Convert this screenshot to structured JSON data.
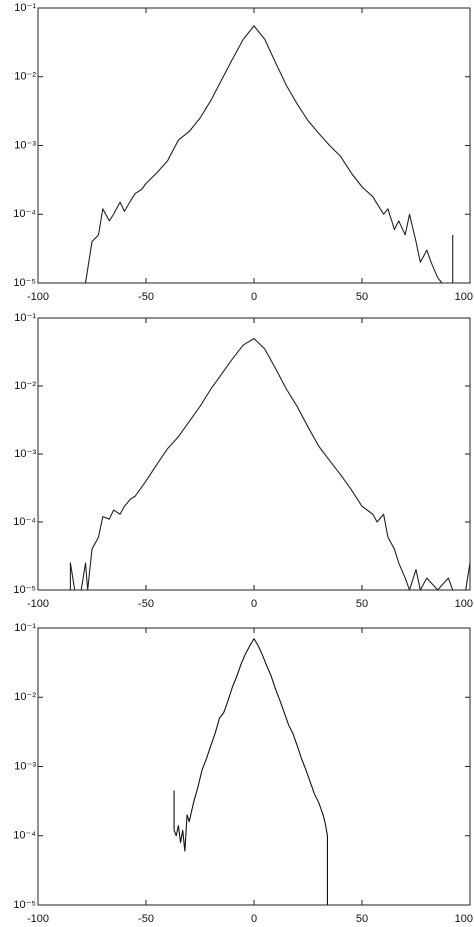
{
  "chart_data": [
    {
      "type": "line",
      "log_y": true,
      "color": "#222222",
      "xlim": [
        -100,
        100
      ],
      "xticks": [
        -100,
        -50,
        0,
        50,
        100
      ],
      "ylim": [
        1e-05,
        0.1
      ],
      "yticks": [
        {
          "value": 1e-05,
          "label": "10⁻⁵"
        },
        {
          "value": 0.0001,
          "label": "10⁻⁴"
        },
        {
          "value": 0.001,
          "label": "10⁻³"
        },
        {
          "value": 0.01,
          "label": "10⁻²"
        },
        {
          "value": 0.1,
          "label": "10⁻¹"
        }
      ],
      "x": [
        -78,
        -75,
        -72,
        -70,
        -67,
        -65,
        -62,
        -60,
        -57,
        -55,
        -52,
        -50,
        -45,
        -40,
        -35,
        -30,
        -25,
        -20,
        -15,
        -10,
        -5,
        0,
        5,
        10,
        15,
        20,
        25,
        30,
        35,
        40,
        45,
        50,
        55,
        60,
        62,
        65,
        67,
        70,
        72,
        75,
        77,
        80,
        82,
        85,
        87,
        92,
        92
      ],
      "values": [
        1e-05,
        4e-05,
        5e-05,
        0.00012,
        8e-05,
        0.0001,
        0.00015,
        0.00011,
        0.00016,
        0.0002,
        0.00023,
        0.00028,
        0.0004,
        0.0006,
        0.0012,
        0.0016,
        0.0025,
        0.0045,
        0.009,
        0.018,
        0.035,
        0.055,
        0.035,
        0.016,
        0.0075,
        0.004,
        0.0023,
        0.0015,
        0.001,
        0.0007,
        0.0004,
        0.00025,
        0.00018,
        0.0001,
        0.00012,
        6e-05,
        8e-05,
        5e-05,
        0.0001,
        4e-05,
        2e-05,
        3e-05,
        2e-05,
        1.2e-05,
        1e-05,
        1e-05,
        5e-05
      ]
    },
    {
      "type": "line",
      "log_y": true,
      "color": "#222222",
      "xlim": [
        -100,
        100
      ],
      "xticks": [
        -100,
        -50,
        0,
        50,
        100
      ],
      "ylim": [
        1e-05,
        0.1
      ],
      "yticks": [
        {
          "value": 1e-05,
          "label": "10⁻⁵"
        },
        {
          "value": 0.0001,
          "label": "10⁻⁴"
        },
        {
          "value": 0.001,
          "label": "10⁻³"
        },
        {
          "value": 0.01,
          "label": "10⁻²"
        },
        {
          "value": 0.1,
          "label": "10⁻¹"
        }
      ],
      "x": [
        -85,
        -85,
        -83,
        -82,
        -80,
        -78,
        -77,
        -75,
        -72,
        -70,
        -67,
        -65,
        -62,
        -60,
        -57,
        -55,
        -50,
        -45,
        -40,
        -35,
        -30,
        -25,
        -20,
        -15,
        -10,
        -5,
        0,
        5,
        10,
        15,
        20,
        25,
        30,
        35,
        40,
        45,
        50,
        55,
        57,
        60,
        62,
        65,
        67,
        70,
        72,
        75,
        77,
        80,
        85,
        90,
        92,
        95,
        98,
        100
      ],
      "values": [
        1e-05,
        2.5e-05,
        1e-05,
        1e-05,
        1e-05,
        2.5e-05,
        1e-05,
        4e-05,
        6e-05,
        0.00012,
        0.00011,
        0.00015,
        0.00013,
        0.00017,
        0.00022,
        0.00024,
        0.0004,
        0.0007,
        0.0012,
        0.0018,
        0.003,
        0.005,
        0.009,
        0.015,
        0.025,
        0.04,
        0.05,
        0.035,
        0.018,
        0.009,
        0.005,
        0.0025,
        0.0013,
        0.0008,
        0.0005,
        0.0003,
        0.00017,
        0.00013,
        0.0001,
        0.00013,
        6e-05,
        4e-05,
        2.5e-05,
        1.5e-05,
        1e-05,
        2e-05,
        1e-05,
        1.5e-05,
        1e-05,
        1.5e-05,
        1e-05,
        1e-05,
        1e-05,
        2.5e-05
      ]
    },
    {
      "type": "line",
      "log_y": true,
      "color": "#111111",
      "xlim": [
        -100,
        100
      ],
      "xticks": [
        -100,
        -50,
        0,
        50,
        100
      ],
      "ylim": [
        1e-05,
        0.1
      ],
      "yticks": [
        {
          "value": 1e-05,
          "label": "10⁻⁵"
        },
        {
          "value": 0.0001,
          "label": "10⁻⁴"
        },
        {
          "value": 0.001,
          "label": "10⁻³"
        },
        {
          "value": 0.01,
          "label": "10⁻²"
        },
        {
          "value": 0.1,
          "label": "10⁻¹"
        }
      ],
      "x": [
        -37,
        -37,
        -36,
        -35,
        -34,
        -33,
        -32,
        -31,
        -30,
        -28,
        -26,
        -24,
        -22,
        -20,
        -18,
        -16,
        -14,
        -12,
        -10,
        -8,
        -6,
        -4,
        -2,
        0,
        2,
        4,
        6,
        8,
        10,
        12,
        14,
        16,
        18,
        20,
        22,
        24,
        26,
        28,
        30,
        32,
        33,
        34,
        34
      ],
      "values": [
        0.00045,
        0.00012,
        0.0001,
        0.00014,
        8e-05,
        0.00012,
        6e-05,
        0.0002,
        0.00016,
        0.0003,
        0.0005,
        0.0009,
        0.0013,
        0.002,
        0.003,
        0.005,
        0.006,
        0.009,
        0.014,
        0.02,
        0.03,
        0.042,
        0.055,
        0.07,
        0.055,
        0.04,
        0.028,
        0.02,
        0.013,
        0.009,
        0.006,
        0.004,
        0.003,
        0.002,
        0.0013,
        0.0009,
        0.0006,
        0.0004,
        0.0003,
        0.0002,
        0.00015,
        0.0001,
        1e-05
      ]
    }
  ]
}
